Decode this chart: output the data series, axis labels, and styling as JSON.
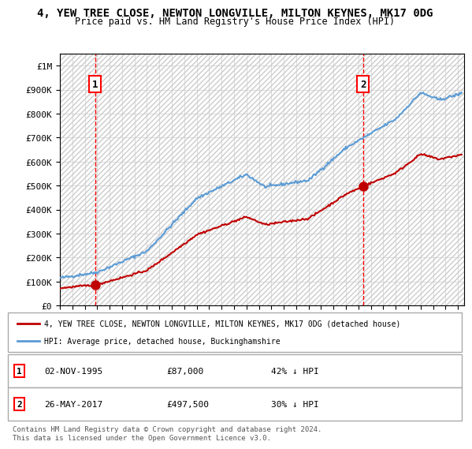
{
  "title": "4, YEW TREE CLOSE, NEWTON LONGVILLE, MILTON KEYNES, MK17 0DG",
  "subtitle": "Price paid vs. HM Land Registry's House Price Index (HPI)",
  "hpi_label": "HPI: Average price, detached house, Buckinghamshire",
  "property_label": "4, YEW TREE CLOSE, NEWTON LONGVILLE, MILTON KEYNES, MK17 0DG (detached house)",
  "hpi_color": "#5b9bd5",
  "property_color": "#c00000",
  "dashed_color": "#ff0000",
  "background_color": "#ffffff",
  "plot_bg_color": "#ffffff",
  "hatch_color": "#e0e0e0",
  "grid_color": "#cccccc",
  "ylim": [
    0,
    1050000
  ],
  "yticks": [
    0,
    100000,
    200000,
    300000,
    400000,
    500000,
    600000,
    700000,
    800000,
    900000,
    1000000
  ],
  "ytick_labels": [
    "£0",
    "£100K",
    "£200K",
    "£300K",
    "£400K",
    "£500K",
    "£600K",
    "£700K",
    "£800K",
    "£900K",
    "£1M"
  ],
  "xlim_start": 1993,
  "xlim_end": 2025.5,
  "xticks": [
    1993,
    1994,
    1995,
    1996,
    1997,
    1998,
    1999,
    2000,
    2001,
    2002,
    2003,
    2004,
    2005,
    2006,
    2007,
    2008,
    2009,
    2010,
    2011,
    2012,
    2013,
    2014,
    2015,
    2016,
    2017,
    2018,
    2019,
    2020,
    2021,
    2022,
    2023,
    2024,
    2025
  ],
  "sale1_x": 1995.84,
  "sale1_y": 87000,
  "sale1_label": "1",
  "sale1_date": "02-NOV-1995",
  "sale1_price": "£87,000",
  "sale1_hpi": "42% ↓ HPI",
  "sale2_x": 2017.39,
  "sale2_y": 497500,
  "sale2_label": "2",
  "sale2_date": "26-MAY-2017",
  "sale2_price": "£497,500",
  "sale2_hpi": "30% ↓ HPI",
  "footnote": "Contains HM Land Registry data © Crown copyright and database right 2024.\nThis data is licensed under the Open Government Licence v3.0."
}
